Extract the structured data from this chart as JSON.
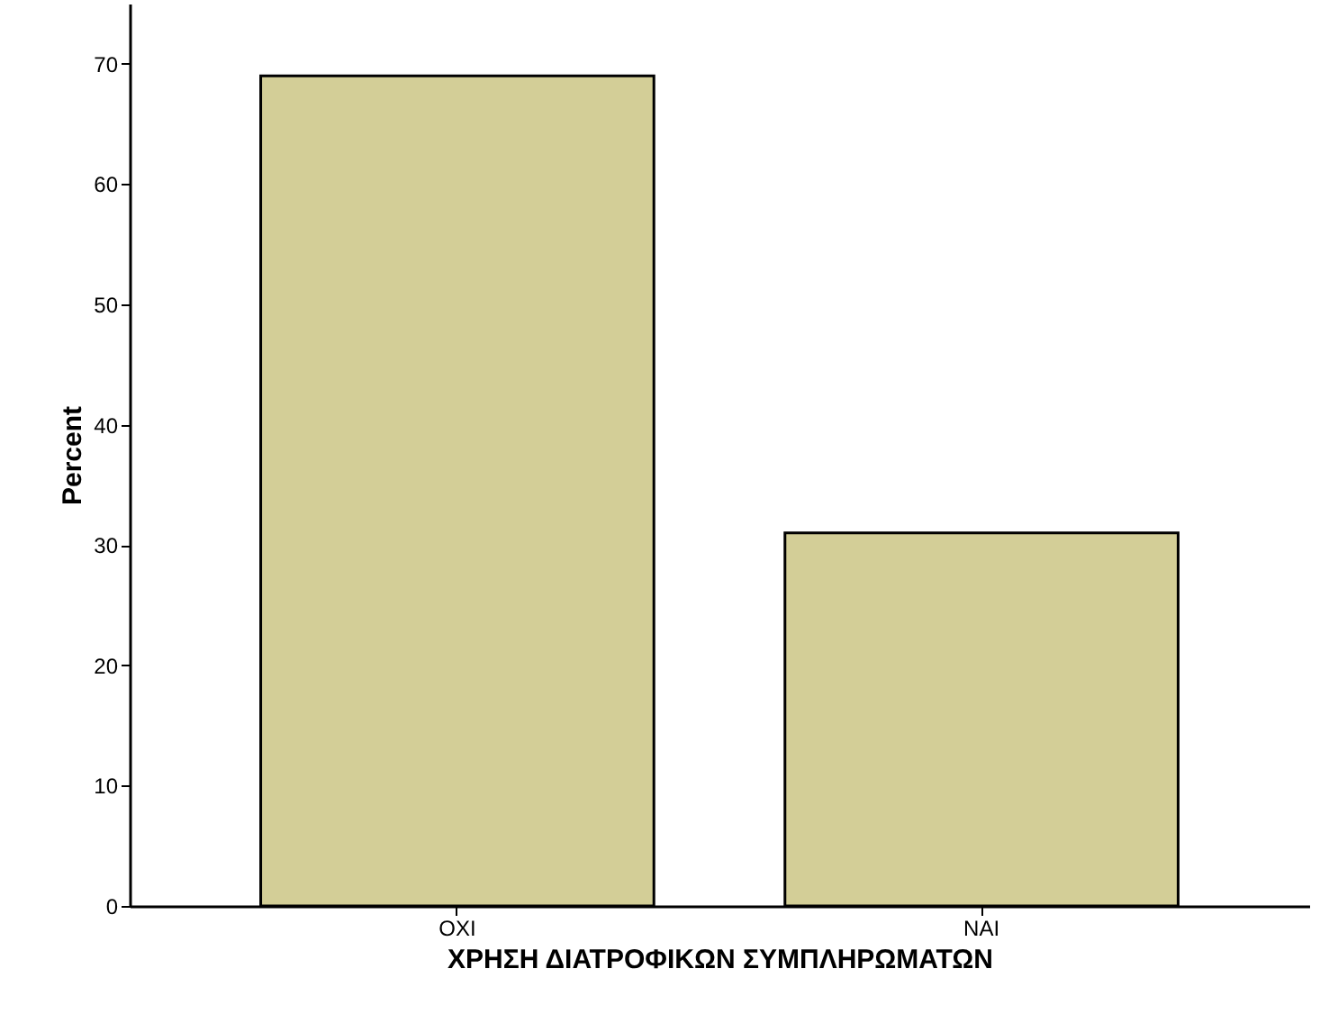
{
  "chart_data": {
    "type": "bar",
    "xlabel": "ΧΡΗΣΗ ΔΙΑΤΡΟΦΙΚΩΝ ΣΥΜΠΛΗΡΩΜΑΤΩΝ",
    "ylabel": "Percent",
    "categories": [
      "ΟΧΙ",
      "ΝΑΙ"
    ],
    "values": [
      69,
      31
    ],
    "color": "#d3ce97",
    "ylim": [
      0,
      75
    ],
    "yticks": [
      0,
      10,
      20,
      30,
      40,
      50,
      60,
      70
    ],
    "grid": false
  }
}
